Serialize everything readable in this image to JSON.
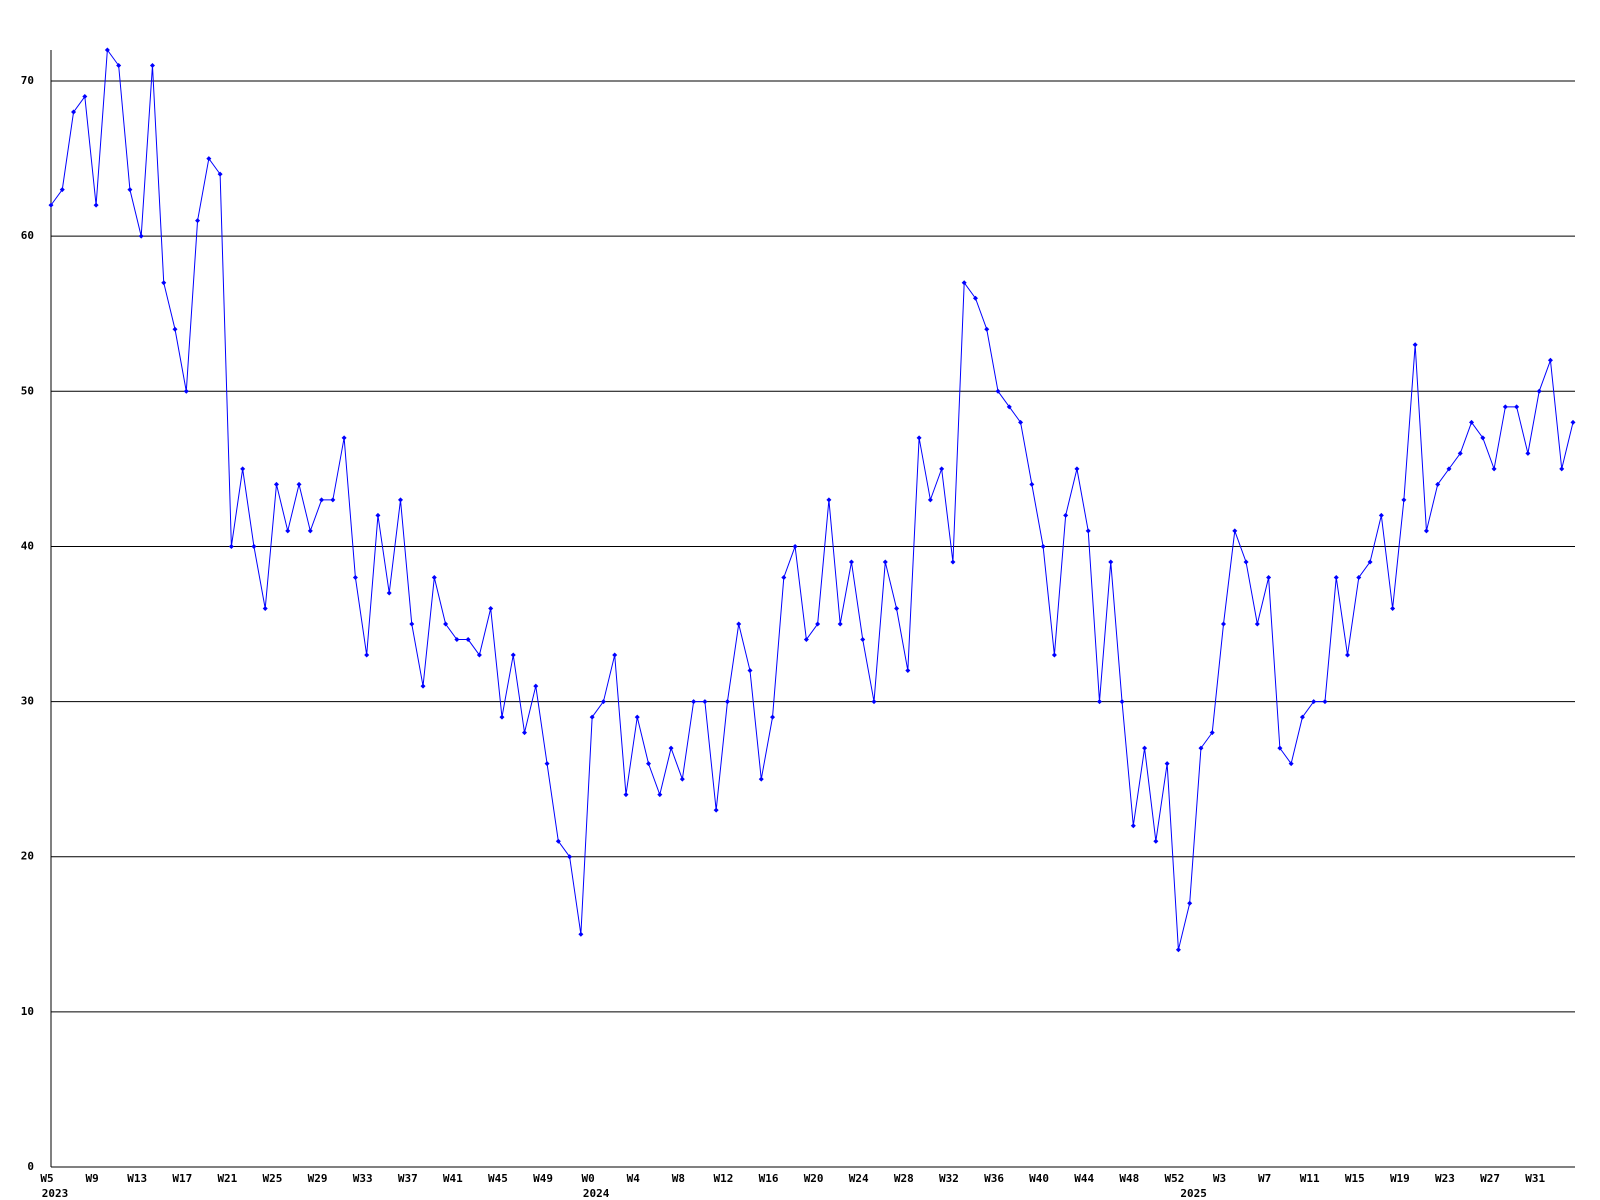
{
  "chart_data": {
    "type": "line",
    "color": "#0000ff",
    "categories": [
      "W5",
      null,
      null,
      null,
      "W9",
      null,
      null,
      null,
      "W13",
      null,
      null,
      null,
      "W17",
      null,
      null,
      null,
      "W21",
      null,
      null,
      null,
      "W25",
      null,
      null,
      null,
      "W29",
      null,
      null,
      null,
      "W33",
      null,
      null,
      null,
      "W37",
      null,
      null,
      null,
      "W41",
      null,
      null,
      null,
      "W45",
      null,
      null,
      null,
      "W49",
      null,
      null,
      null,
      "W0",
      null,
      null,
      null,
      "W4",
      null,
      null,
      null,
      "W8",
      null,
      null,
      null,
      "W12",
      null,
      null,
      null,
      "W16",
      null,
      null,
      null,
      "W20",
      null,
      null,
      null,
      "W24",
      null,
      null,
      null,
      "W28",
      null,
      null,
      null,
      "W32",
      null,
      null,
      null,
      "W36",
      null,
      null,
      null,
      "W40",
      null,
      null,
      null,
      "W44",
      null,
      null,
      null,
      "W48",
      null,
      null,
      null,
      "W52",
      null,
      null,
      null,
      "W3",
      null,
      null,
      null,
      "W7",
      null,
      null,
      null,
      "W11",
      null,
      null,
      null,
      "W15",
      null,
      null,
      null,
      "W19",
      null,
      null,
      null,
      "W23",
      null,
      null,
      null,
      "W27",
      null,
      null,
      null,
      "W31",
      null,
      null,
      null
    ],
    "category_years": [
      "2023",
      null,
      null,
      null,
      null,
      null,
      null,
      null,
      null,
      null,
      null,
      null,
      null,
      null,
      null,
      null,
      null,
      null,
      null,
      null,
      null,
      null,
      null,
      null,
      null,
      null,
      null,
      null,
      null,
      null,
      null,
      null,
      null,
      null,
      null,
      null,
      null,
      null,
      null,
      null,
      null,
      null,
      null,
      null,
      null,
      null,
      null,
      null,
      "2024",
      null,
      null,
      null,
      null,
      null,
      null,
      null,
      null,
      null,
      null,
      null,
      null,
      null,
      null,
      null,
      null,
      null,
      null,
      null,
      null,
      null,
      null,
      null,
      null,
      null,
      null,
      null,
      null,
      null,
      null,
      null,
      null,
      null,
      null,
      null,
      null,
      null,
      null,
      null,
      null,
      null,
      null,
      null,
      null,
      null,
      null,
      null,
      null,
      null,
      null,
      null,
      null,
      "2025",
      null,
      null,
      null,
      null,
      null,
      null,
      null,
      null,
      null,
      null,
      null,
      null,
      null,
      null,
      null,
      null,
      null,
      null,
      null,
      null,
      null,
      null,
      null,
      null,
      null,
      null,
      null,
      null,
      null,
      null,
      null,
      null,
      null,
      null
    ],
    "values": [
      62,
      63,
      68,
      69,
      62,
      72,
      71,
      63,
      60,
      71,
      57,
      54,
      50,
      61,
      65,
      64,
      40,
      45,
      40,
      36,
      44,
      41,
      44,
      41,
      43,
      43,
      47,
      38,
      33,
      42,
      37,
      43,
      35,
      31,
      38,
      35,
      34,
      34,
      33,
      36,
      29,
      33,
      28,
      31,
      26,
      21,
      20,
      15,
      29,
      30,
      33,
      24,
      29,
      26,
      24,
      27,
      25,
      30,
      30,
      23,
      30,
      35,
      32,
      25,
      29,
      38,
      40,
      34,
      35,
      43,
      35,
      39,
      34,
      30,
      39,
      36,
      32,
      47,
      43,
      45,
      39,
      57,
      56,
      54,
      50,
      49,
      48,
      44,
      40,
      33,
      42,
      45,
      41,
      30,
      39,
      30,
      22,
      27,
      21,
      26,
      14,
      17,
      27,
      28,
      35,
      41,
      39,
      35,
      38,
      27,
      26,
      29,
      30,
      30,
      38,
      33,
      38,
      39,
      42,
      36,
      43,
      53,
      41,
      44,
      45,
      46,
      48,
      47,
      45,
      49,
      49,
      46,
      50,
      52,
      45,
      48
    ],
    "ylim": [
      0,
      72
    ],
    "yticks": [
      0,
      10,
      20,
      30,
      40,
      50,
      60,
      70
    ],
    "grid": true
  }
}
